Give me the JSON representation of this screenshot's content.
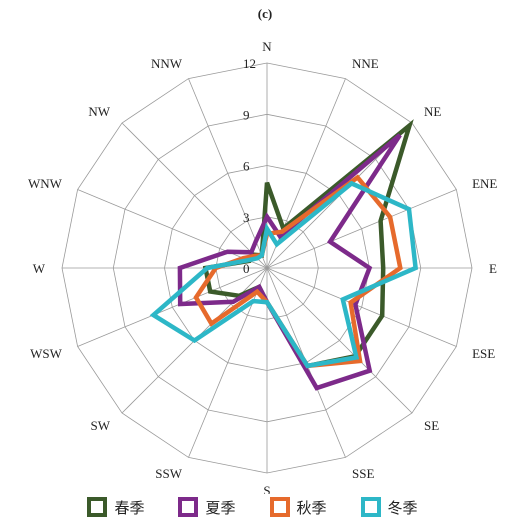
{
  "panel_label": "(c)",
  "chart_data": {
    "type": "radar",
    "directions": [
      "N",
      "NNE",
      "NE",
      "ENE",
      "E",
      "ESE",
      "SE",
      "SSE",
      "S",
      "SSW",
      "SW",
      "WSW",
      "W",
      "WNW",
      "NW",
      "NNW"
    ],
    "radial_ticks": [
      "0",
      "3",
      "6",
      "9",
      "12"
    ],
    "rlim": [
      0,
      12
    ],
    "grid": true,
    "legend_position": "bottom",
    "series": [
      {
        "name": "春季",
        "color": "#3b5a2a",
        "values": [
          5.0,
          2.5,
          11.8,
          7.2,
          6.8,
          7.3,
          7.3,
          6.2,
          2.0,
          1.2,
          2.3,
          3.6,
          3.6,
          1.1,
          1.1,
          0.8
        ]
      },
      {
        "name": "夏季",
        "color": "#7d2a8a",
        "values": [
          3.0,
          2.0,
          11.0,
          4.0,
          6.0,
          5.6,
          8.5,
          7.6,
          2.0,
          1.2,
          2.8,
          5.5,
          5.1,
          2.5,
          1.3,
          1.7
        ]
      },
      {
        "name": "秋季",
        "color": "#e66a2c",
        "values": [
          2.0,
          2.3,
          7.5,
          7.8,
          7.8,
          5.3,
          7.7,
          6.2,
          2.0,
          1.5,
          4.6,
          4.5,
          3.0,
          1.5,
          1.0,
          0.8
        ]
      },
      {
        "name": "冬季",
        "color": "#2db7c7",
        "values": [
          2.3,
          1.5,
          7.0,
          9.0,
          8.7,
          4.8,
          7.4,
          6.2,
          2.0,
          2.1,
          6.0,
          7.2,
          3.5,
          1.2,
          0.8,
          0.8
        ]
      }
    ]
  }
}
